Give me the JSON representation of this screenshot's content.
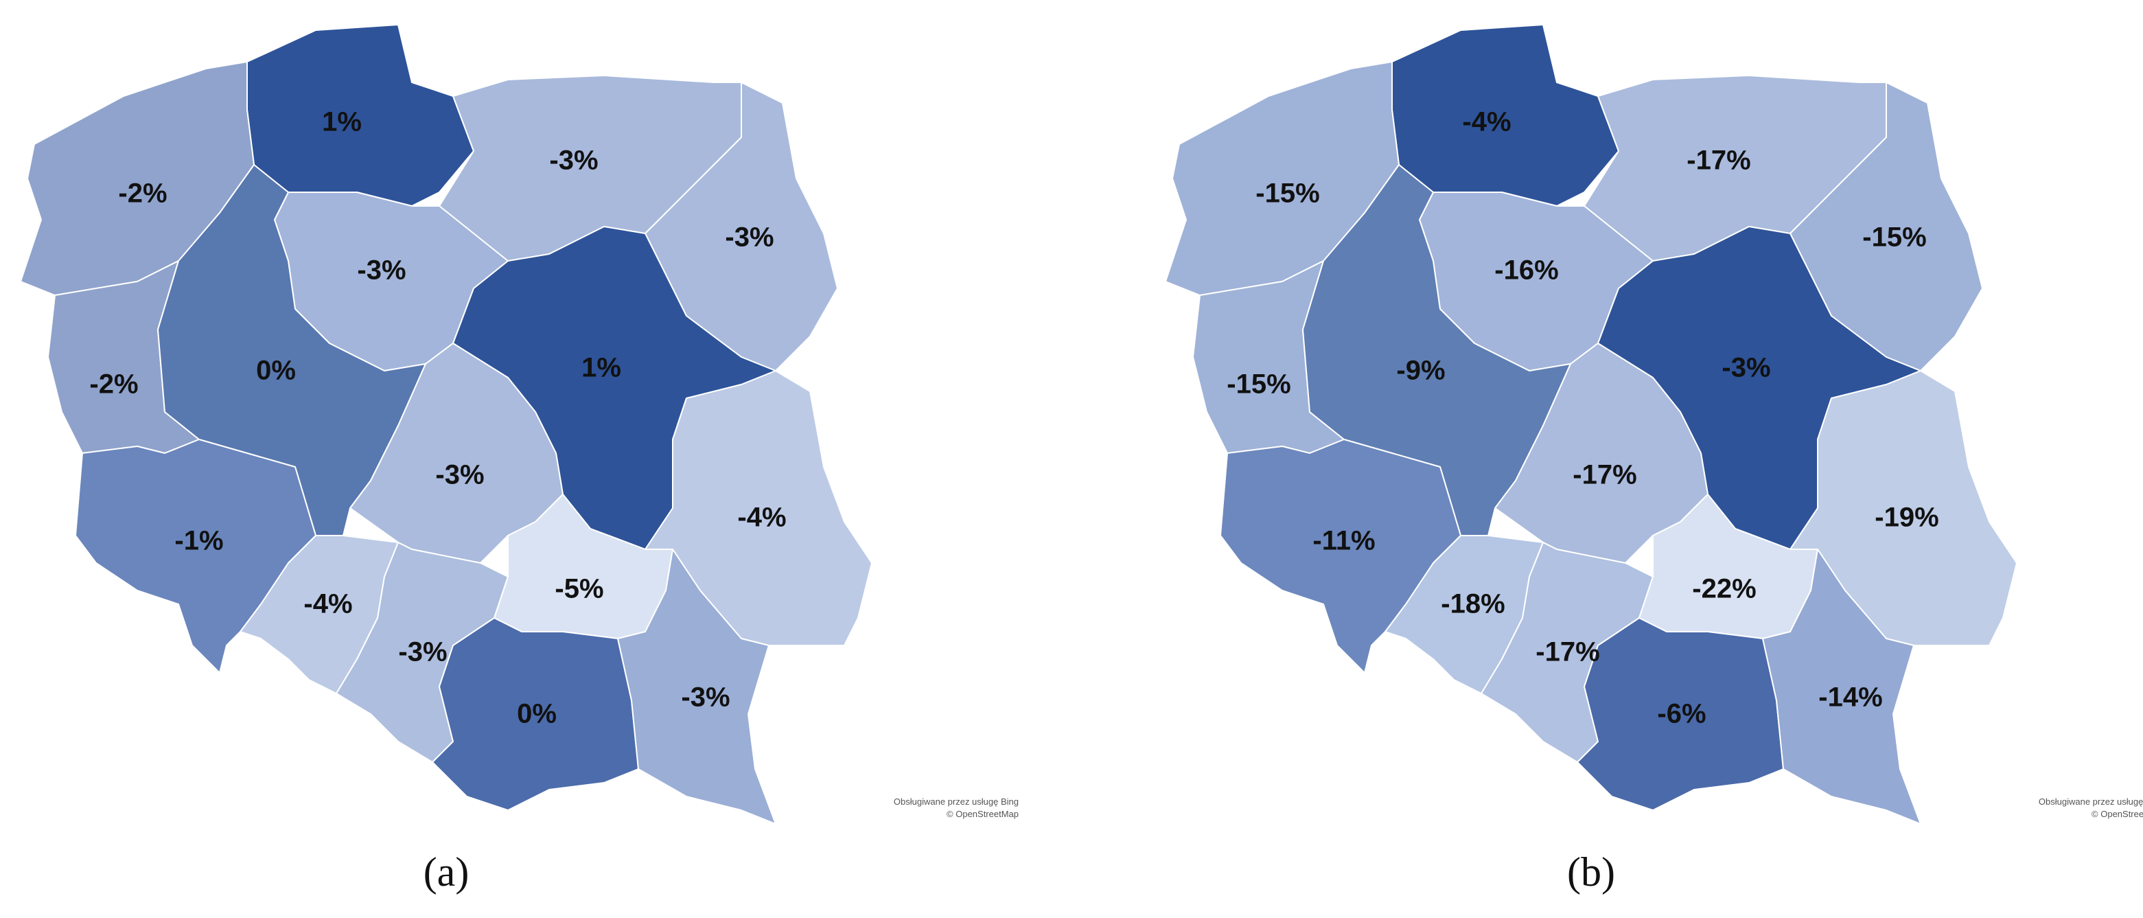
{
  "maps": [
    {
      "regions": [
        {
          "label": "1%",
          "color": "#2e5399"
        },
        {
          "label": "-2%",
          "color": "#8fa3cc"
        },
        {
          "label": "-3%",
          "color": "#a8b9dc"
        },
        {
          "label": "-3%",
          "color": "#a9badd"
        },
        {
          "label": "-3%",
          "color": "#a3b5da"
        },
        {
          "label": "1%",
          "color": "#2e5399"
        },
        {
          "label": "-2%",
          "color": "#8ea2cb"
        },
        {
          "label": "0%",
          "color": "#5878b0"
        },
        {
          "label": "-3%",
          "color": "#aabbdd"
        },
        {
          "label": "-4%",
          "color": "#bccae6"
        },
        {
          "label": "-1%",
          "color": "#6a86bd"
        },
        {
          "label": "-4%",
          "color": "#bccae6"
        },
        {
          "label": "-3%",
          "color": "#adbede"
        },
        {
          "label": "-5%",
          "color": "#dae3f3"
        },
        {
          "label": "0%",
          "color": "#4c6cab"
        },
        {
          "label": "-3%",
          "color": "#9aaed6"
        }
      ],
      "caption": "(a)",
      "attribution": [
        "Obsługiwane przez usługę Bing",
        "© OpenStreetMap"
      ]
    },
    {
      "regions": [
        {
          "label": "-4%",
          "color": "#2e5399"
        },
        {
          "label": "-15%",
          "color": "#9fb2d8"
        },
        {
          "label": "-17%",
          "color": "#aabbdd"
        },
        {
          "label": "-15%",
          "color": "#9fb2d8"
        },
        {
          "label": "-16%",
          "color": "#a3b5da"
        },
        {
          "label": "-3%",
          "color": "#2e5399"
        },
        {
          "label": "-15%",
          "color": "#9fb2d8"
        },
        {
          "label": "-9%",
          "color": "#5f7eb4"
        },
        {
          "label": "-17%",
          "color": "#aabbdd"
        },
        {
          "label": "-19%",
          "color": "#bfcde7"
        },
        {
          "label": "-11%",
          "color": "#6c88be"
        },
        {
          "label": "-18%",
          "color": "#b5c6e4"
        },
        {
          "label": "-17%",
          "color": "#b0c1e1"
        },
        {
          "label": "-22%",
          "color": "#d9e2f3"
        },
        {
          "label": "-6%",
          "color": "#4a6aaa"
        },
        {
          "label": "-14%",
          "color": "#94a9d3"
        }
      ],
      "caption": "(b)",
      "attribution": [
        "Obsługiwane przez usługę Bing",
        "© OpenStreetMap"
      ]
    }
  ]
}
